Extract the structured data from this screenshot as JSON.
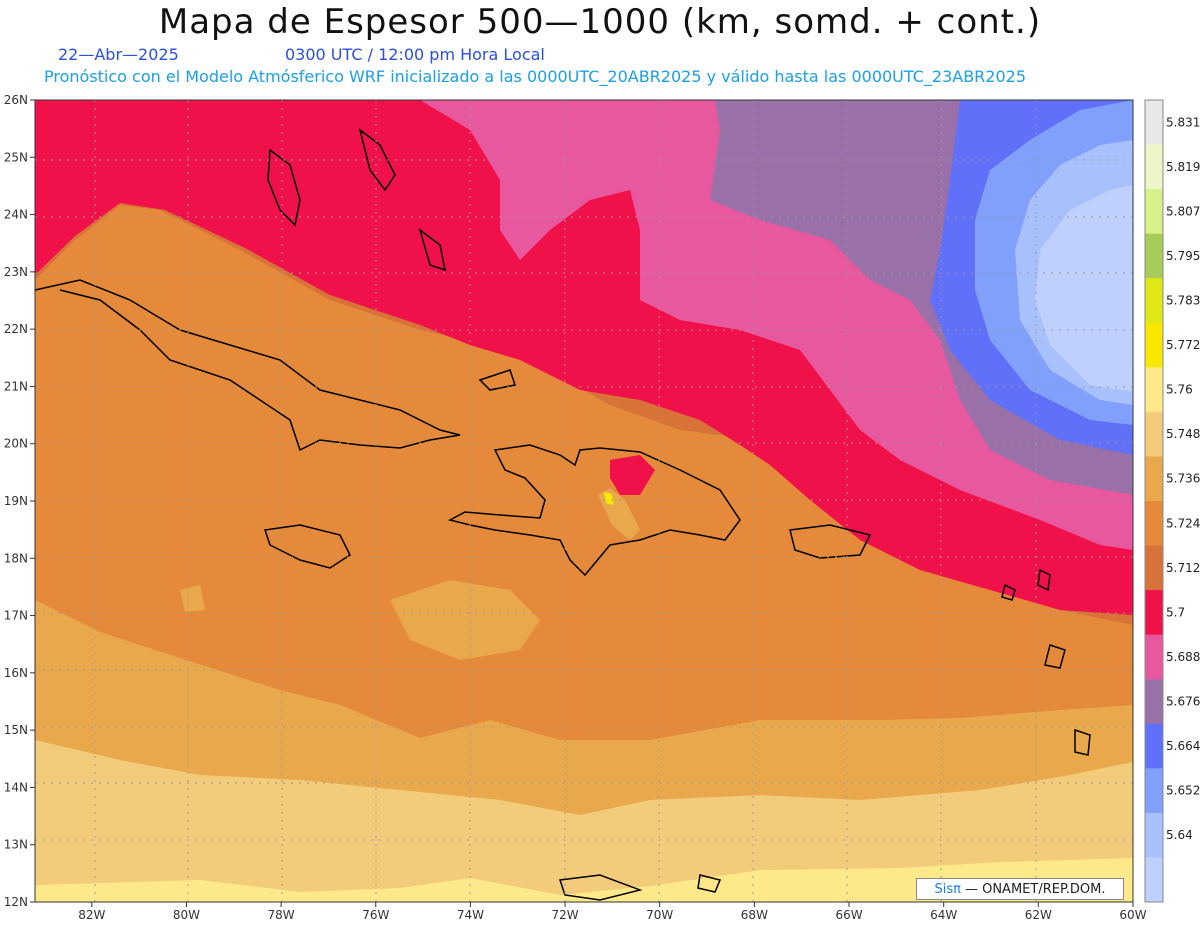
{
  "header": {
    "title": "Mapa de Espesor 500—1000 (km, somd. + cont.)",
    "date": "22—Abr—2025",
    "time": "0300 UTC / 12:00 pm Hora Local",
    "subtitle": "Pronóstico con el Modelo Atmósferico WRF inicializado a las 0000UTC_20ABR2025 y válido hasta las  0000UTC_23ABR2025"
  },
  "map": {
    "lon_labels": [
      "82W",
      "80W",
      "78W",
      "76W",
      "74W",
      "72W",
      "70W",
      "68W",
      "66W",
      "64W",
      "62W",
      "60W"
    ],
    "lat_labels": [
      "26N",
      "25N",
      "24N",
      "23N",
      "22N",
      "21N",
      "20N",
      "19N",
      "18N",
      "17N",
      "16N",
      "15N",
      "14N",
      "13N",
      "12N"
    ],
    "lon_range": [
      -83.2,
      -60
    ],
    "lat_range": [
      12,
      26
    ]
  },
  "colorbar": {
    "levels": [
      "5.831",
      "5.819",
      "5.807",
      "5.795",
      "5.783",
      "5.772",
      "5.76",
      "5.748",
      "5.736",
      "5.724",
      "5.712",
      "5.7",
      "5.688",
      "5.676",
      "5.664",
      "5.652",
      "5.64"
    ],
    "colors": [
      "#e8e8e8",
      "#eef6c8",
      "#d8f08a",
      "#a8cc5a",
      "#e0e818",
      "#f8e800",
      "#fde88a",
      "#f2cc7a",
      "#eaa84c",
      "#e48a3a",
      "#d87238",
      "#f0104a",
      "#e8589e",
      "#9a70a8",
      "#6070f8",
      "#80a0fc",
      "#a8c0fc",
      "#c0d0fc"
    ]
  },
  "credit": {
    "brand": "Sisπ",
    "text": "— ONAMET/REP.DOM."
  }
}
